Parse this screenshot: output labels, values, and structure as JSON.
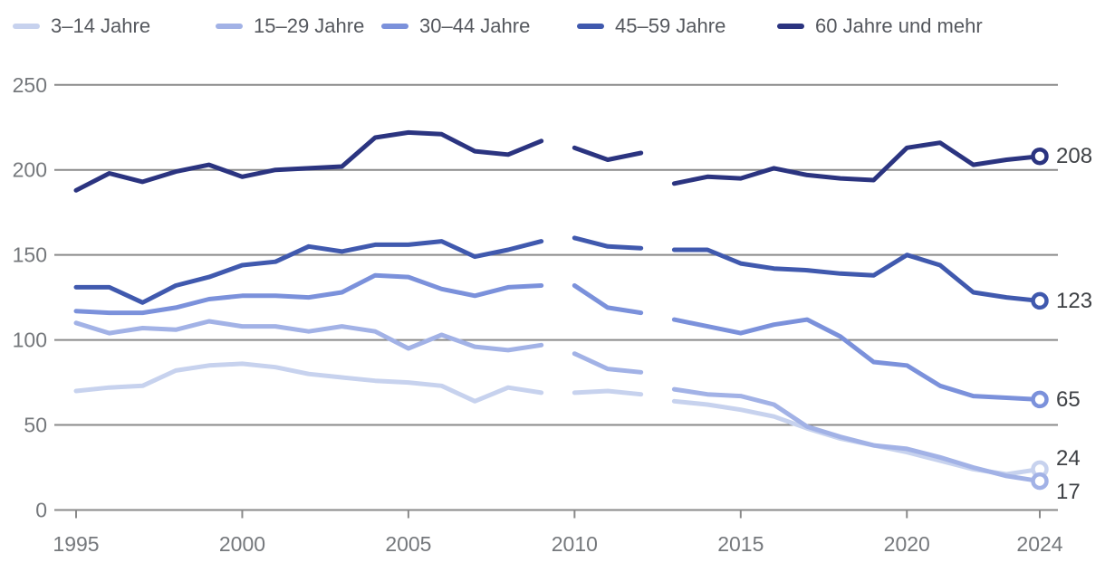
{
  "chart_data": {
    "type": "line",
    "title": "",
    "xlabel": "",
    "ylabel": "",
    "grid": true,
    "legend_position": "top",
    "ylim": [
      0,
      250
    ],
    "y_ticks": [
      0,
      50,
      100,
      150,
      200,
      250
    ],
    "x_ticks": [
      1995,
      2000,
      2005,
      2010,
      2015,
      2020,
      2024
    ],
    "x": [
      1995,
      1996,
      1997,
      1998,
      1999,
      2000,
      2001,
      2002,
      2003,
      2004,
      2005,
      2006,
      2007,
      2008,
      2009,
      2010,
      2011,
      2012,
      2013,
      2014,
      2015,
      2016,
      2017,
      2018,
      2019,
      2020,
      2021,
      2022,
      2023,
      2024
    ],
    "breaks_after": [
      2009,
      2012
    ],
    "series": [
      {
        "name": "3–14 Jahre",
        "color": "#c7d2ee",
        "end_label": "24",
        "label_offset_y": -12,
        "values": [
          70,
          72,
          73,
          82,
          85,
          86,
          84,
          80,
          78,
          76,
          75,
          73,
          64,
          72,
          69,
          69,
          70,
          68,
          64,
          62,
          59,
          55,
          48,
          42,
          38,
          34,
          29,
          24,
          21,
          24
        ]
      },
      {
        "name": "15–29 Jahre",
        "color": "#a2b2e6",
        "end_label": "17",
        "label_offset_y": 12,
        "values": [
          110,
          104,
          107,
          106,
          111,
          108,
          108,
          105,
          108,
          105,
          95,
          103,
          96,
          94,
          97,
          92,
          83,
          81,
          71,
          68,
          67,
          62,
          49,
          43,
          38,
          36,
          31,
          25,
          20,
          17
        ]
      },
      {
        "name": "30–44 Jahre",
        "color": "#7b91db",
        "end_label": "65",
        "label_offset_y": 0,
        "values": [
          117,
          116,
          116,
          119,
          124,
          126,
          126,
          125,
          128,
          138,
          137,
          130,
          126,
          131,
          132,
          132,
          119,
          116,
          112,
          108,
          104,
          109,
          112,
          102,
          87,
          85,
          73,
          67,
          66,
          65
        ]
      },
      {
        "name": "45–59 Jahre",
        "color": "#4059ae",
        "end_label": "123",
        "label_offset_y": 0,
        "values": [
          131,
          131,
          122,
          132,
          137,
          144,
          146,
          155,
          152,
          156,
          156,
          158,
          149,
          153,
          158,
          160,
          155,
          154,
          153,
          153,
          145,
          142,
          141,
          139,
          138,
          150,
          144,
          128,
          125,
          123
        ]
      },
      {
        "name": "60 Jahre und mehr",
        "color": "#2b3480",
        "end_label": "208",
        "label_offset_y": 0,
        "values": [
          188,
          198,
          193,
          199,
          203,
          196,
          200,
          201,
          202,
          219,
          222,
          221,
          211,
          209,
          217,
          213,
          206,
          210,
          192,
          196,
          195,
          201,
          197,
          195,
          194,
          213,
          216,
          203,
          206,
          208
        ]
      }
    ]
  }
}
